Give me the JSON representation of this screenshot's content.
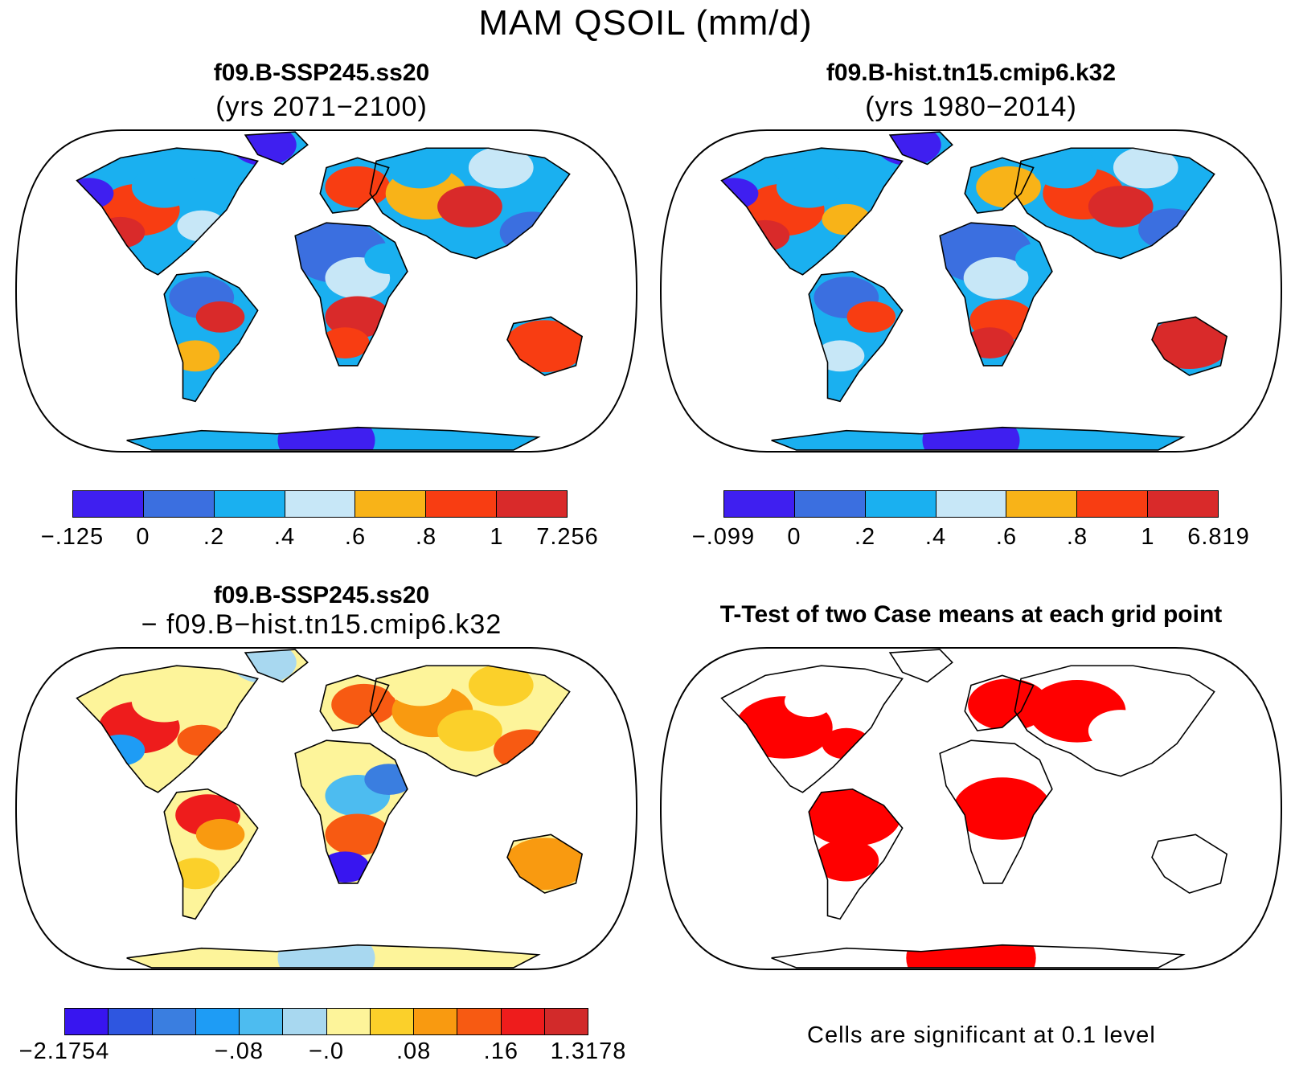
{
  "figure": {
    "title": "MAM QSOIL (mm/d)"
  },
  "panels": [
    {
      "id": "p1",
      "title": "f09.B-SSP245.ss20",
      "subtitle": "(yrs 2071−2100)",
      "land_palette": [
        "#3f1ff0",
        "#3b6fe0",
        "#1ab0f0",
        "#c7e7f7",
        "#f8b318",
        "#f83d12",
        "#d92a2a"
      ],
      "colorbar": {
        "colors": [
          "#3f1ff0",
          "#3b6fe0",
          "#1ab0f0",
          "#c7e7f7",
          "#f8b318",
          "#f83d12",
          "#d92a2a"
        ],
        "labels": [
          "−.125",
          "0",
          ".2",
          ".4",
          ".6",
          ".8",
          "1",
          "7.256"
        ]
      }
    },
    {
      "id": "p2",
      "title": "f09.B-hist.tn15.cmip6.k32",
      "subtitle": "(yrs 1980−2014)",
      "land_palette": [
        "#3f1ff0",
        "#3b6fe0",
        "#1ab0f0",
        "#c7e7f7",
        "#f8b318",
        "#f83d12",
        "#d92a2a"
      ],
      "colorbar": {
        "colors": [
          "#3f1ff0",
          "#3b6fe0",
          "#1ab0f0",
          "#c7e7f7",
          "#f8b318",
          "#f83d12",
          "#d92a2a"
        ],
        "labels": [
          "−.099",
          "0",
          ".2",
          ".4",
          ".6",
          ".8",
          "1",
          "6.819"
        ]
      }
    },
    {
      "id": "p3",
      "title": "f09.B-SSP245.ss20",
      "subtitle": "− f09.B−hist.tn15.cmip6.k32",
      "land_palette": [
        "#3815f0",
        "#2e56e0",
        "#3a7ee0",
        "#1e9cf5",
        "#4dbcf0",
        "#a8d8f0",
        "#fdf49a",
        "#fbd02a",
        "#f99a10",
        "#f75a12",
        "#ee1c1c",
        "#d22a2a"
      ],
      "colorbar": {
        "colors": [
          "#3815f0",
          "#2e56e0",
          "#3a7ee0",
          "#1e9cf5",
          "#4dbcf0",
          "#a8d8f0",
          "#fdf49a",
          "#fbd02a",
          "#f99a10",
          "#f75a12",
          "#ee1c1c",
          "#d22a2a"
        ],
        "labels": [
          "−2.1754",
          "",
          "",
          "",
          "−.08",
          "",
          "−.0",
          "",
          ".08",
          "",
          ".16",
          "",
          "1.3178"
        ]
      }
    },
    {
      "id": "p4",
      "title": "T-Test of two Case means at each grid point",
      "subtitle": "",
      "land_palette": [
        "#ffffff",
        "#ff0000",
        "#ff0000",
        "#ff0000"
      ],
      "footnote": "Cells are significant at 0.1 level"
    }
  ]
}
